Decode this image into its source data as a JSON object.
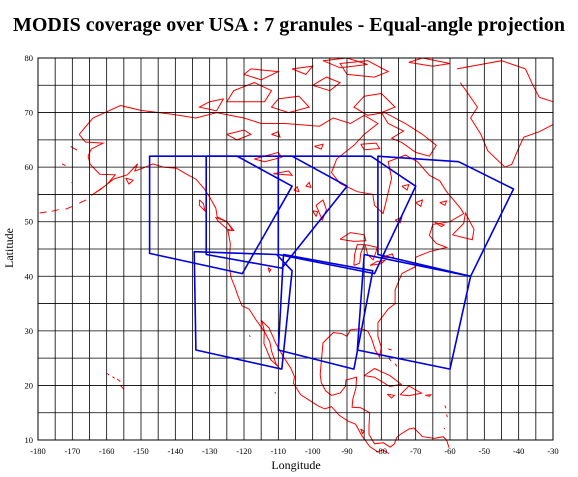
{
  "title": "MODIS coverage over USA : 7 granules - Equal-angle projection",
  "map": {
    "x_axis_label": "Longitude",
    "y_axis_label": "Latitude",
    "lon_range": [
      -180,
      -30
    ],
    "lat_range": [
      10,
      80
    ],
    "lon_ticks": [
      -180,
      -170,
      -160,
      -150,
      -140,
      -130,
      -120,
      -110,
      -100,
      -90,
      -80,
      -70,
      -60,
      -50,
      -40,
      -30
    ],
    "lat_ticks": [
      10,
      20,
      30,
      40,
      50,
      60,
      70,
      80
    ],
    "grid": true,
    "colors": {
      "coastline": "#ff0000",
      "granule": "#0000dd",
      "grid": "#000000"
    }
  },
  "granules": [
    {
      "name": "",
      "corners": [
        [
          -147.5,
          62.0
        ],
        [
          -122.0,
          62.0
        ],
        [
          -106.0,
          56.5
        ],
        [
          -120.5,
          40.5
        ],
        [
          -147.5,
          44.2
        ]
      ]
    },
    {
      "name": "",
      "corners": [
        [
          -131.0,
          62.0
        ],
        [
          -106.0,
          62.0
        ],
        [
          -90.0,
          56.5
        ],
        [
          -109.0,
          41.5
        ],
        [
          -131.0,
          44.0
        ]
      ]
    },
    {
      "name": "",
      "corners": [
        [
          -110.0,
          62.0
        ],
        [
          -83.0,
          62.0
        ],
        [
          -70.0,
          56.5
        ],
        [
          -82.0,
          40.5
        ],
        [
          -110.0,
          44.0
        ]
      ]
    },
    {
      "name": "",
      "corners": [
        [
          -81.0,
          62.0
        ],
        [
          -57.5,
          61.0
        ],
        [
          -41.5,
          56.0
        ],
        [
          -54.0,
          40.0
        ],
        [
          -81.0,
          44.0
        ]
      ]
    },
    {
      "name": "",
      "corners": [
        [
          -134.5,
          44.5
        ],
        [
          -110.5,
          44.0
        ],
        [
          -106.0,
          41.0
        ],
        [
          -109.0,
          23.0
        ],
        [
          -134.0,
          26.5
        ]
      ]
    },
    {
      "name": "",
      "corners": [
        [
          -108.5,
          44.0
        ],
        [
          -82.5,
          41.0
        ],
        [
          -88.0,
          23.0
        ],
        [
          -110.0,
          26.5
        ]
      ]
    },
    {
      "name": "",
      "corners": [
        [
          -85.0,
          44.0
        ],
        [
          -54.0,
          40.0
        ],
        [
          -60.0,
          23.0
        ],
        [
          -87.0,
          26.5
        ]
      ]
    }
  ]
}
